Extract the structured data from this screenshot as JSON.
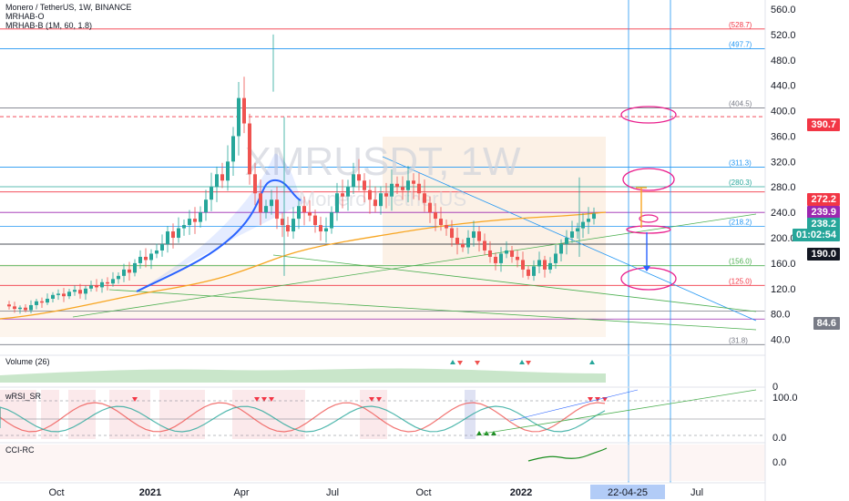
{
  "header": {
    "symbol": "Monero / TetherUS, 1W, BINANCE",
    "indicator1": "MRHAB-O",
    "indicator2": "MRHAB-B (1M, 60, 1.8)"
  },
  "watermark": {
    "ticker": "XMRUSDT, 1W",
    "subtitle": "Monero / TetherUS"
  },
  "price_axis": [
    "560.0",
    "520.0",
    "480.0",
    "440.0",
    "400.0",
    "360.0",
    "320.0",
    "280.0",
    "240.0",
    "200.0",
    "160.0",
    "120.0",
    "80.0",
    "40.0"
  ],
  "fib_labels": [
    "(528.7)",
    "(497.7)",
    "(404.5)",
    "(311.3)",
    "(280.3)",
    "(218.2)",
    "(156.0)",
    "(125.0)",
    "(31.8)"
  ],
  "price_tags": [
    {
      "text": "390.7",
      "color": "#f23645"
    },
    {
      "text": "272.2",
      "color": "#f23645"
    },
    {
      "text": "239.9",
      "color": "#9c27b0"
    },
    {
      "text": "238.2",
      "color": "#26a69a"
    },
    {
      "text": "01:02:54",
      "color": "#26a69a"
    },
    {
      "text": "190.0",
      "color": "#131722"
    },
    {
      "text": "84.6",
      "color": "#787b86"
    }
  ],
  "panes": {
    "volume": {
      "label": "Volume (26)",
      "axis": "0"
    },
    "wrsi": {
      "label": "wRSI_SR",
      "axis": [
        "100.0",
        "0.0"
      ]
    },
    "cci": {
      "label": "CCI-RC",
      "axis": "0.0"
    }
  },
  "time_axis": [
    "Oct",
    "2021",
    "Apr",
    "Jul",
    "Oct",
    "2022",
    "22-04-25",
    "Jul"
  ],
  "colors": {
    "up": "#26a69a",
    "down": "#ef5350",
    "accent": "#2962ff",
    "fib_red": "#f23645",
    "fib_blue": "#2196f3"
  }
}
